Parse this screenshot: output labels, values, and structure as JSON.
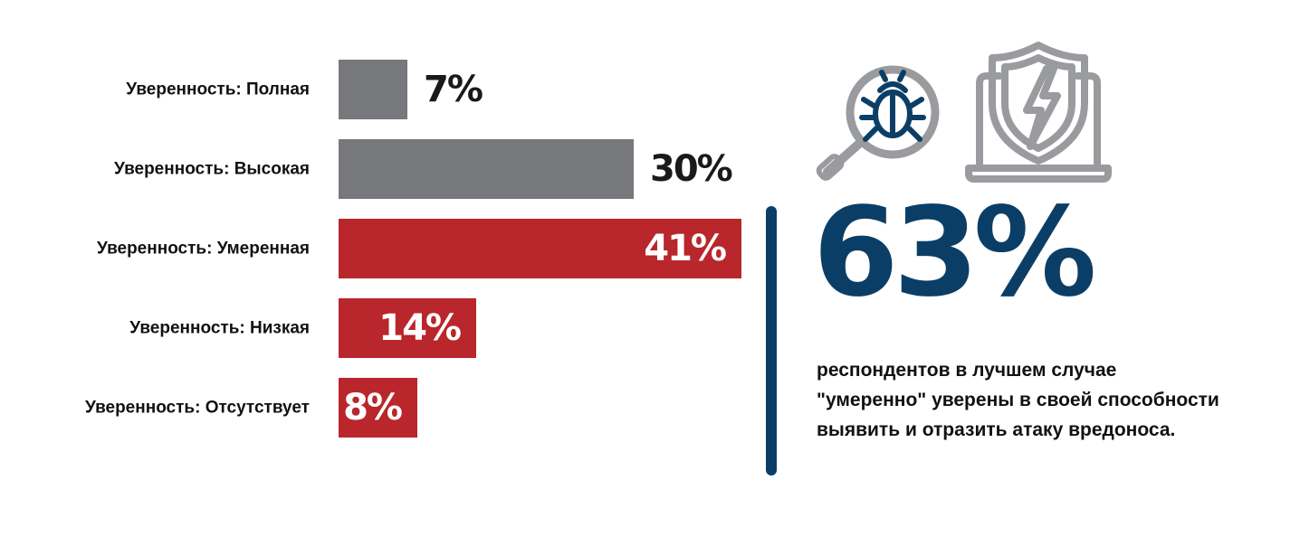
{
  "colors": {
    "gray_bar": "#77787c",
    "red_bar": "#b9262b",
    "navy": "#0b3e66",
    "icon_gray": "#9a9b9e",
    "label_dark": "#1a1a1a",
    "label_light": "#ffffff"
  },
  "chart_data": {
    "type": "bar",
    "orientation": "horizontal",
    "categories": [
      "Уверенность: Полная",
      "Уверенность: Высокая",
      "Уверенность: Умеренная",
      "Уверенность: Низкая",
      "Уверенность: Отсутствует"
    ],
    "values": [
      7,
      30,
      41,
      14,
      8
    ],
    "value_labels": [
      "7%",
      "30%",
      "41%",
      "14%",
      "8%"
    ],
    "bar_colors": [
      "gray",
      "gray",
      "red",
      "red",
      "red"
    ],
    "xlim": [
      0,
      41
    ],
    "grid": false
  },
  "highlight": {
    "value": "63%",
    "caption_lines": [
      "респондентов в лучшем случае",
      "\"умеренно\" уверены в своей способности",
      "выявить и отразить атаку вредоноса."
    ]
  },
  "icons": [
    "bug-search-icon",
    "laptop-shield-lightning-icon"
  ]
}
